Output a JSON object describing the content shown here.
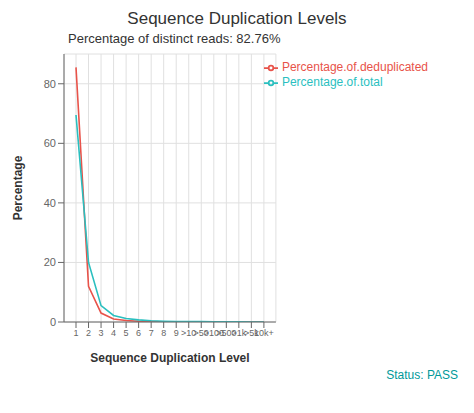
{
  "chart_data": {
    "type": "line",
    "title": "Sequence Duplication Levels",
    "subtitle": "Percentage of distinct reads: 82.76%",
    "x_label": "Sequence Duplication Level",
    "y_label": "Percentage",
    "annotations": [
      {
        "text": "Status: PASS",
        "color": "#009999"
      }
    ],
    "categories": [
      "1",
      "2",
      "3",
      "4",
      "5",
      "6",
      "7",
      "8",
      "9",
      ">10",
      ">50",
      ">100",
      ">500",
      ">1k",
      ">5k",
      "10k+"
    ],
    "series": [
      {
        "name": "Percentage.of.deduplicated",
        "color": "#E8534A",
        "values": [
          85.5,
          12.0,
          3.0,
          1.0,
          0.5,
          0.25,
          0.15,
          0.1,
          0.08,
          0.07,
          0.05,
          0.04,
          0.03,
          0.02,
          0.01,
          0.01
        ]
      },
      {
        "name": "Percentage.of.total",
        "color": "#2ABFBF",
        "values": [
          69.5,
          20.0,
          5.5,
          2.2,
          1.2,
          0.7,
          0.4,
          0.25,
          0.18,
          0.15,
          0.12,
          0.09,
          0.07,
          0.05,
          0.02,
          0.01
        ]
      }
    ],
    "ylim": [
      0,
      90
    ],
    "yticks": [
      0,
      20,
      40,
      60,
      80
    ],
    "grid": true,
    "legend": "upper right"
  }
}
